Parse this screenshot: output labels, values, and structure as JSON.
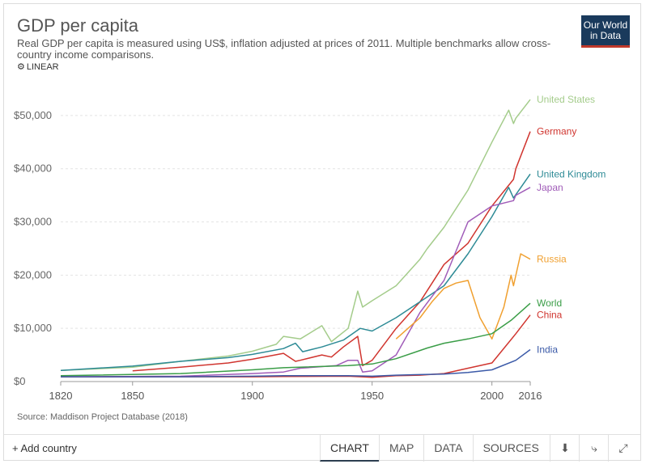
{
  "header": {
    "title": "GDP per capita",
    "subtitle": "Real GDP per capita is measured using US$, inflation adjusted at prices of 2011. Multiple benchmarks allow cross-country income comparisons.",
    "scale_label": "LINEAR",
    "logo_line1": "Our World",
    "logo_line2": "in Data"
  },
  "source": "Source: Maddison Project Database (2018)",
  "toolbar": {
    "add_country": "Add country",
    "tabs": [
      {
        "label": "CHART",
        "active": true
      },
      {
        "label": "MAP",
        "active": false
      },
      {
        "label": "DATA",
        "active": false
      },
      {
        "label": "SOURCES",
        "active": false
      }
    ],
    "icons": [
      "download-icon",
      "share-icon",
      "fullscreen-icon"
    ]
  },
  "chart_data": {
    "type": "line",
    "title": "GDP per capita",
    "xlim": [
      1820,
      2016
    ],
    "ylim": [
      0,
      55000
    ],
    "x_ticks": [
      1820,
      1850,
      1900,
      1950,
      2000,
      2016
    ],
    "x_tick_labels": [
      "1820",
      "1850",
      "1900",
      "1950",
      "2000",
      "2016"
    ],
    "y_ticks": [
      0,
      10000,
      20000,
      30000,
      40000,
      50000
    ],
    "y_tick_labels": [
      "$0",
      "$10,000",
      "$20,000",
      "$30,000",
      "$40,000",
      "$50,000"
    ],
    "grid": true,
    "legend": "right-end labels",
    "series": [
      {
        "name": "United States",
        "color": "#a4cc8b",
        "x": [
          1820,
          1850,
          1870,
          1890,
          1900,
          1910,
          1913,
          1920,
          1929,
          1933,
          1940,
          1944,
          1946,
          1950,
          1960,
          1970,
          1973,
          1980,
          1990,
          2000,
          2007,
          2009,
          2010,
          2016
        ],
        "y": [
          2100,
          2700,
          3800,
          4800,
          5700,
          7000,
          8500,
          8000,
          10500,
          7500,
          10000,
          17000,
          14000,
          15200,
          18000,
          23000,
          25000,
          29000,
          36000,
          45000,
          51000,
          48500,
          49500,
          53000
        ]
      },
      {
        "name": "Germany",
        "color": "#d0352f",
        "x": [
          1850,
          1870,
          1890,
          1900,
          1913,
          1918,
          1920,
          1929,
          1933,
          1938,
          1944,
          1946,
          1950,
          1960,
          1970,
          1980,
          1990,
          2000,
          2009,
          2010,
          2016
        ],
        "y": [
          2000,
          2700,
          3500,
          4200,
          5300,
          3800,
          4000,
          5000,
          4600,
          6500,
          8500,
          3000,
          4000,
          10000,
          15000,
          22000,
          26000,
          33000,
          38000,
          40000,
          47000
        ]
      },
      {
        "name": "United Kingdom",
        "color": "#2e8b96",
        "x": [
          1820,
          1850,
          1870,
          1890,
          1900,
          1913,
          1918,
          1921,
          1929,
          1938,
          1945,
          1950,
          1960,
          1970,
          1980,
          1990,
          2000,
          2007,
          2009,
          2016
        ],
        "y": [
          2100,
          2900,
          3800,
          4500,
          5100,
          6200,
          7200,
          5600,
          6500,
          7800,
          10000,
          9500,
          12000,
          15000,
          18000,
          24000,
          31000,
          36500,
          34500,
          39000
        ]
      },
      {
        "name": "Japan",
        "color": "#a05cb8",
        "x": [
          1820,
          1870,
          1900,
          1913,
          1920,
          1935,
          1940,
          1944,
          1946,
          1950,
          1960,
          1970,
          1980,
          1990,
          2000,
          2009,
          2010,
          2016
        ],
        "y": [
          900,
          1000,
          1500,
          1800,
          2500,
          3000,
          4000,
          4000,
          1800,
          2000,
          5000,
          13000,
          19000,
          30000,
          33000,
          34000,
          35000,
          36500
        ]
      },
      {
        "name": "Russia",
        "color": "#f0a030",
        "x": [
          1960,
          1970,
          1975,
          1980,
          1985,
          1990,
          1995,
          2000,
          2005,
          2008,
          2009,
          2012,
          2016
        ],
        "y": [
          8000,
          12000,
          15000,
          17500,
          18500,
          19000,
          12000,
          8000,
          14000,
          20000,
          18000,
          24000,
          23000
        ]
      },
      {
        "name": "World",
        "color": "#3a9d47",
        "x": [
          1820,
          1870,
          1900,
          1913,
          1940,
          1950,
          1960,
          1973,
          1980,
          1990,
          2000,
          2008,
          2016
        ],
        "y": [
          1100,
          1500,
          2200,
          2600,
          3000,
          3300,
          4300,
          6300,
          7200,
          8000,
          9000,
          11500,
          14700
        ]
      },
      {
        "name": "China",
        "color": "#d0352f",
        "x": [
          1820,
          1870,
          1900,
          1913,
          1940,
          1950,
          1960,
          1970,
          1980,
          1990,
          2000,
          2010,
          2016
        ],
        "y": [
          880,
          900,
          900,
          950,
          1000,
          800,
          1100,
          1200,
          1500,
          2500,
          3500,
          9000,
          12500
        ]
      },
      {
        "name": "India",
        "color": "#3b5aa8",
        "x": [
          1820,
          1870,
          1900,
          1913,
          1940,
          1950,
          1960,
          1970,
          1980,
          1990,
          2000,
          2010,
          2016
        ],
        "y": [
          900,
          900,
          1000,
          1100,
          1100,
          1000,
          1200,
          1300,
          1400,
          1700,
          2200,
          4000,
          6000
        ]
      }
    ]
  }
}
